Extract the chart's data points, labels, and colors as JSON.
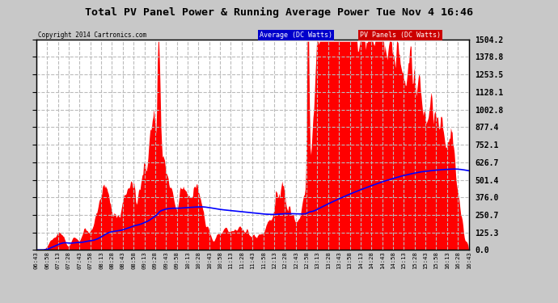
{
  "title": "Total PV Panel Power & Running Average Power Tue Nov 4 16:46",
  "copyright": "Copyright 2014 Cartronics.com",
  "legend_avg": "Average (DC Watts)",
  "legend_pv": "PV Panels (DC Watts)",
  "bg_color": "#c8c8c8",
  "plot_bg_color": "#ffffff",
  "bar_color": "#ff0000",
  "avg_line_color": "#0000ff",
  "y_ticks": [
    0.0,
    125.3,
    250.7,
    376.0,
    501.4,
    626.7,
    752.1,
    877.4,
    1002.8,
    1128.1,
    1253.5,
    1378.8,
    1504.2
  ],
  "ymax": 1504.2,
  "grid_color": "#bbbbbb",
  "grid_style": "--",
  "tick_labels": [
    "06:43",
    "06:58",
    "07:13",
    "07:28",
    "07:43",
    "07:58",
    "08:13",
    "08:28",
    "08:43",
    "08:58",
    "09:13",
    "09:28",
    "09:43",
    "09:58",
    "10:13",
    "10:28",
    "10:43",
    "10:58",
    "11:13",
    "11:28",
    "11:43",
    "11:58",
    "12:13",
    "12:28",
    "12:43",
    "12:58",
    "13:13",
    "13:28",
    "13:43",
    "13:58",
    "14:13",
    "14:28",
    "14:43",
    "14:58",
    "15:13",
    "15:28",
    "15:43",
    "15:58",
    "16:13",
    "16:28",
    "16:43"
  ]
}
